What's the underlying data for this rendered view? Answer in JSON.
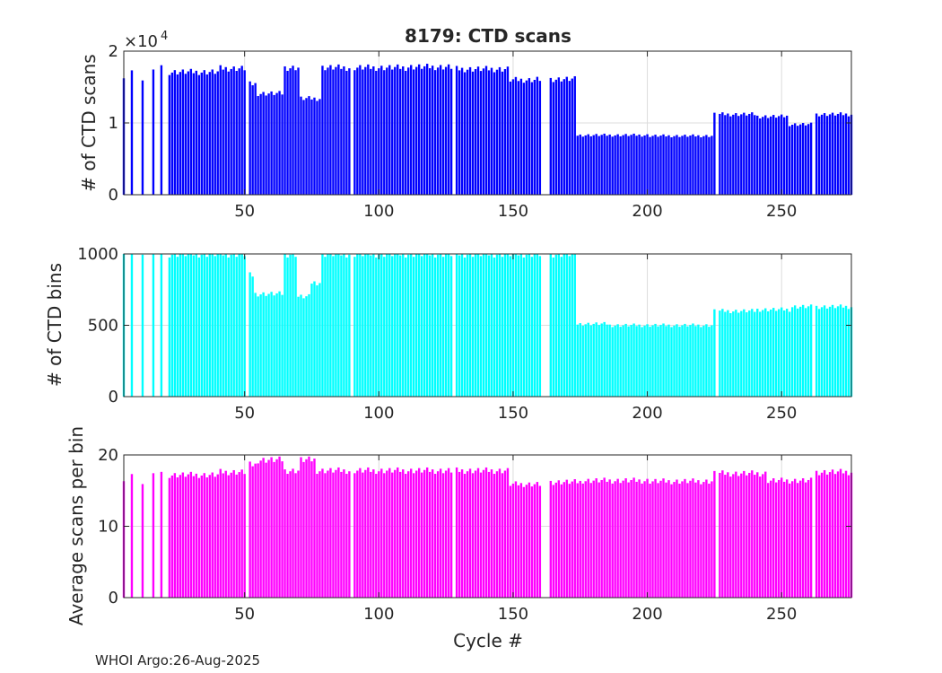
{
  "title": "8179: CTD scans",
  "footer": "WHOI Argo:26-Aug-2025",
  "chart_data": [
    {
      "type": "bar",
      "id": "scans",
      "ylabel": "# of CTD scans",
      "xlabel": "",
      "xlim": [
        5,
        276
      ],
      "ylim": [
        0,
        20000
      ],
      "xticks": [
        50,
        100,
        150,
        200,
        250
      ],
      "yticks": [
        0,
        10000,
        20000
      ],
      "ytick_labels": [
        "0",
        "1",
        "2"
      ],
      "exponent_base": "×10",
      "exponent_power": "4",
      "color": "#0000ff",
      "grid": true,
      "segments": [
        {
          "from": 5,
          "to": 5,
          "value": 15900
        },
        {
          "from": 8,
          "to": 8,
          "value": 16900
        },
        {
          "from": 12,
          "to": 12,
          "value": 16000
        },
        {
          "from": 16,
          "to": 16,
          "value": 17100
        },
        {
          "from": 19,
          "to": 19,
          "value": 17600
        },
        {
          "from": 22,
          "to": 40,
          "value": 17100
        },
        {
          "from": 41,
          "to": 50,
          "value": 17600
        },
        {
          "from": 51,
          "to": 54,
          "value": 15400
        },
        {
          "from": 55,
          "to": 64,
          "value": 14100
        },
        {
          "from": 65,
          "to": 70,
          "value": 17700
        },
        {
          "from": 71,
          "to": 78,
          "value": 13400
        },
        {
          "from": 79,
          "to": 110,
          "value": 17700
        },
        {
          "from": 111,
          "to": 128,
          "value": 17800
        },
        {
          "from": 129,
          "to": 148,
          "value": 17500
        },
        {
          "from": 149,
          "to": 158,
          "value": 16000
        },
        {
          "from": 159,
          "to": 173,
          "value": 16100
        },
        {
          "from": 174,
          "to": 200,
          "value": 8300
        },
        {
          "from": 201,
          "to": 224,
          "value": 8200
        },
        {
          "from": 225,
          "to": 240,
          "value": 11200
        },
        {
          "from": 241,
          "to": 252,
          "value": 10900
        },
        {
          "from": 253,
          "to": 262,
          "value": 9800
        },
        {
          "from": 263,
          "to": 276,
          "value": 11200
        }
      ]
    },
    {
      "type": "bar",
      "id": "bins",
      "ylabel": "# of CTD bins",
      "xlabel": "",
      "xlim": [
        5,
        276
      ],
      "ylim": [
        0,
        1000
      ],
      "xticks": [
        50,
        100,
        150,
        200,
        250
      ],
      "yticks": [
        0,
        500,
        1000
      ],
      "ytick_labels": [
        "0",
        "500",
        "1000"
      ],
      "color": "#00ffff",
      "grid": true,
      "segments": [
        {
          "from": 5,
          "to": 5,
          "value": 1000
        },
        {
          "from": 8,
          "to": 8,
          "value": 1000
        },
        {
          "from": 12,
          "to": 12,
          "value": 1000
        },
        {
          "from": 16,
          "to": 16,
          "value": 1000
        },
        {
          "from": 19,
          "to": 50,
          "value": 1000
        },
        {
          "from": 51,
          "to": 53,
          "value": 850
        },
        {
          "from": 54,
          "to": 64,
          "value": 720
        },
        {
          "from": 65,
          "to": 69,
          "value": 1000
        },
        {
          "from": 70,
          "to": 74,
          "value": 700
        },
        {
          "from": 75,
          "to": 78,
          "value": 800
        },
        {
          "from": 79,
          "to": 173,
          "value": 1000
        },
        {
          "from": 174,
          "to": 185,
          "value": 510
        },
        {
          "from": 186,
          "to": 224,
          "value": 500
        },
        {
          "from": 225,
          "to": 240,
          "value": 600
        },
        {
          "from": 241,
          "to": 253,
          "value": 610
        },
        {
          "from": 254,
          "to": 276,
          "value": 630
        }
      ]
    },
    {
      "type": "bar",
      "id": "avg",
      "ylabel": "Average scans per bin",
      "xlabel": "Cycle #",
      "xlim": [
        5,
        276
      ],
      "ylim": [
        0,
        20
      ],
      "xticks": [
        50,
        100,
        150,
        200,
        250
      ],
      "yticks": [
        0,
        10,
        20
      ],
      "ytick_labels": [
        "0",
        "10",
        "20"
      ],
      "color": "#ff00ff",
      "grid": true,
      "segments": [
        {
          "from": 5,
          "to": 5,
          "value": 16.0
        },
        {
          "from": 8,
          "to": 8,
          "value": 16.9
        },
        {
          "from": 12,
          "to": 12,
          "value": 16.0
        },
        {
          "from": 16,
          "to": 16,
          "value": 17.1
        },
        {
          "from": 19,
          "to": 40,
          "value": 17.2
        },
        {
          "from": 41,
          "to": 50,
          "value": 17.6
        },
        {
          "from": 51,
          "to": 54,
          "value": 18.6
        },
        {
          "from": 55,
          "to": 64,
          "value": 19.3
        },
        {
          "from": 65,
          "to": 70,
          "value": 17.8
        },
        {
          "from": 71,
          "to": 76,
          "value": 19.3
        },
        {
          "from": 77,
          "to": 110,
          "value": 17.8
        },
        {
          "from": 111,
          "to": 148,
          "value": 17.8
        },
        {
          "from": 149,
          "to": 162,
          "value": 15.9
        },
        {
          "from": 163,
          "to": 175,
          "value": 16.2
        },
        {
          "from": 176,
          "to": 200,
          "value": 16.4
        },
        {
          "from": 201,
          "to": 224,
          "value": 16.3
        },
        {
          "from": 225,
          "to": 244,
          "value": 17.4
        },
        {
          "from": 245,
          "to": 262,
          "value": 16.4
        },
        {
          "from": 263,
          "to": 276,
          "value": 17.6
        }
      ]
    }
  ],
  "missing_cycles": [
    6,
    7,
    9,
    10,
    11,
    13,
    14,
    15,
    17,
    18,
    20,
    21,
    51,
    90,
    128,
    161,
    162,
    163,
    226,
    262
  ]
}
